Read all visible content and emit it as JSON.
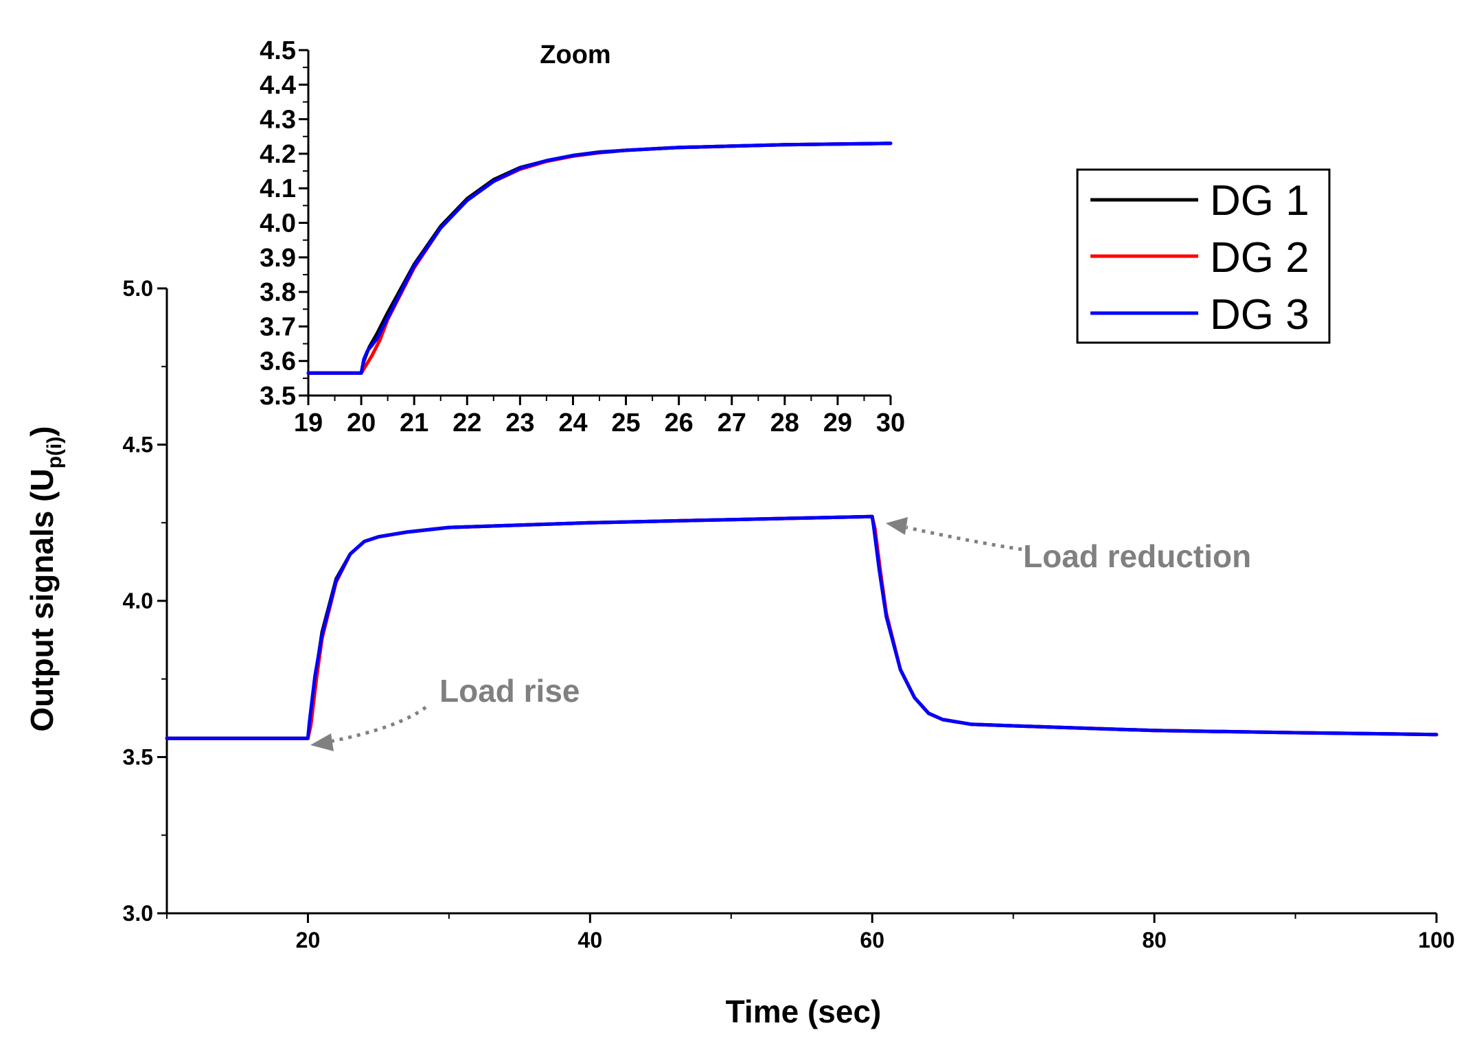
{
  "chart_data": [
    {
      "type": "line",
      "name": "main",
      "xlabel": "Time (sec)",
      "ylabel_main": "Output signals (U",
      "ylabel_sub": "p(i)",
      "ylabel_close": ")",
      "xlim": [
        10,
        100
      ],
      "ylim": [
        3.0,
        5.0
      ],
      "xticks": [
        20,
        40,
        60,
        80,
        100
      ],
      "xtick_labels": [
        "20",
        "40",
        "60",
        "80",
        "100"
      ],
      "yticks": [
        3.0,
        3.5,
        4.0,
        4.5,
        5.0
      ],
      "ytick_labels": [
        "3.0",
        "3.5",
        "4.0",
        "4.5",
        "5.0"
      ],
      "series": [
        {
          "name": "DG 1",
          "color": "#000000",
          "x": [
            10,
            20,
            20.1,
            20.5,
            21,
            22,
            23,
            24,
            25,
            27,
            30,
            40,
            50,
            60,
            60.1,
            60.5,
            61,
            62,
            63,
            64,
            65,
            67,
            70,
            80,
            90,
            100
          ],
          "y": [
            3.56,
            3.56,
            3.6,
            3.75,
            3.9,
            4.07,
            4.15,
            4.19,
            4.205,
            4.22,
            4.235,
            4.25,
            4.26,
            4.27,
            4.24,
            4.1,
            3.95,
            3.78,
            3.69,
            3.64,
            3.62,
            3.605,
            3.6,
            3.585,
            3.578,
            3.572
          ]
        },
        {
          "name": "DG 2",
          "color": "#ff0000",
          "x": [
            10,
            20,
            20.2,
            20.6,
            21,
            22,
            23,
            24,
            25,
            27,
            30,
            40,
            50,
            60,
            60.2,
            60.6,
            61,
            62,
            63,
            64,
            65,
            67,
            70,
            80,
            90,
            100
          ],
          "y": [
            3.56,
            3.56,
            3.6,
            3.75,
            3.88,
            4.06,
            4.15,
            4.19,
            4.205,
            4.22,
            4.235,
            4.25,
            4.26,
            4.27,
            4.23,
            4.09,
            3.96,
            3.78,
            3.69,
            3.64,
            3.62,
            3.605,
            3.6,
            3.585,
            3.578,
            3.572
          ]
        },
        {
          "name": "DG 3",
          "color": "#0000ff",
          "x": [
            10,
            20,
            20.1,
            20.5,
            21,
            22,
            23,
            24,
            25,
            27,
            30,
            40,
            50,
            60,
            60.1,
            60.5,
            61,
            62,
            63,
            64,
            65,
            67,
            70,
            80,
            90,
            100
          ],
          "y": [
            3.56,
            3.56,
            3.61,
            3.76,
            3.89,
            4.065,
            4.15,
            4.19,
            4.205,
            4.22,
            4.235,
            4.25,
            4.26,
            4.27,
            4.24,
            4.1,
            3.95,
            3.78,
            3.69,
            3.64,
            3.62,
            3.605,
            3.6,
            3.585,
            3.578,
            3.572
          ]
        }
      ]
    },
    {
      "type": "line",
      "name": "inset",
      "title": "Zoom",
      "xlim": [
        19,
        30
      ],
      "ylim": [
        3.5,
        4.5
      ],
      "xticks": [
        19,
        20,
        21,
        22,
        23,
        24,
        25,
        26,
        27,
        28,
        29,
        30
      ],
      "xtick_labels": [
        "19",
        "20",
        "21",
        "22",
        "23",
        "24",
        "25",
        "26",
        "27",
        "28",
        "29",
        "30"
      ],
      "yticks": [
        3.5,
        3.6,
        3.7,
        3.8,
        3.9,
        4.0,
        4.1,
        4.2,
        4.3,
        4.4,
        4.5
      ],
      "ytick_labels": [
        "3.5",
        "3.6",
        "3.7",
        "3.8",
        "3.9",
        "4.0",
        "4.1",
        "4.2",
        "4.3",
        "4.4",
        "4.5"
      ],
      "series": [
        {
          "name": "DG 1",
          "color": "#000000",
          "x": [
            19,
            20,
            20.05,
            20.15,
            20.3,
            20.5,
            21,
            21.5,
            22,
            22.5,
            23,
            23.5,
            24,
            24.5,
            25,
            26,
            27,
            28,
            29,
            30
          ],
          "y": [
            3.565,
            3.565,
            3.6,
            3.64,
            3.68,
            3.74,
            3.88,
            3.99,
            4.07,
            4.125,
            4.16,
            4.18,
            4.195,
            4.205,
            4.21,
            4.218,
            4.222,
            4.226,
            4.228,
            4.23
          ]
        },
        {
          "name": "DG 2",
          "color": "#ff0000",
          "x": [
            19,
            20,
            20.1,
            20.2,
            20.35,
            20.5,
            21,
            21.5,
            22,
            22.5,
            23,
            23.5,
            24,
            24.5,
            25,
            26,
            27,
            28,
            29,
            30
          ],
          "y": [
            3.565,
            3.565,
            3.59,
            3.615,
            3.66,
            3.72,
            3.87,
            3.985,
            4.065,
            4.12,
            4.155,
            4.178,
            4.193,
            4.203,
            4.21,
            4.218,
            4.222,
            4.226,
            4.228,
            4.23
          ]
        },
        {
          "name": "DG 3",
          "color": "#0000ff",
          "x": [
            19,
            20,
            20.05,
            20.12,
            20.2,
            20.3,
            20.5,
            21,
            21.5,
            22,
            22.5,
            23,
            23.5,
            24,
            24.5,
            25,
            26,
            27,
            28,
            29,
            30
          ],
          "y": [
            3.565,
            3.565,
            3.605,
            3.63,
            3.645,
            3.665,
            3.725,
            3.875,
            3.985,
            4.065,
            4.12,
            4.158,
            4.18,
            4.195,
            4.204,
            4.21,
            4.218,
            4.222,
            4.226,
            4.228,
            4.23
          ]
        }
      ]
    }
  ],
  "legend": [
    {
      "label": "DG 1",
      "color": "#000000"
    },
    {
      "label": "DG 2",
      "color": "#ff0000"
    },
    {
      "label": "DG 3",
      "color": "#0000ff"
    }
  ],
  "annotations": {
    "load_rise": "Load rise",
    "load_reduction": "Load reduction",
    "color": "#808080"
  }
}
